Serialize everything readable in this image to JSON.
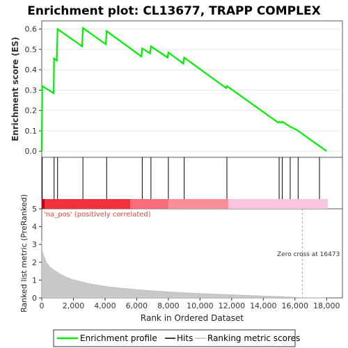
{
  "title": "Enrichment plot: CL13677, TRAPP COMPLEX",
  "top_ylabel": "Enrichment score (ES)",
  "bottom_ylabel": "Ranked list metric (PreRanked)",
  "xlabel": "Rank in Ordered Dataset",
  "pos_label": "'na_pos' (positively correlated)",
  "zero_cross_label": "Zero cross at 16473",
  "legend": {
    "profile": "Enrichment profile",
    "hits": "Hits",
    "metric": "Ranking metric scores"
  },
  "colors": {
    "profile": "#00ee00",
    "hits": "#000000",
    "metric": "#c0c0c0",
    "zero_line": "#aaaaaa"
  },
  "chart_data": {
    "type": "line",
    "x_range": [
      0,
      19000
    ],
    "x_ticks": [
      0,
      2000,
      4000,
      6000,
      8000,
      10000,
      12000,
      14000,
      16000,
      18000
    ],
    "x_tick_labels": [
      "0",
      "2,000",
      "4,000",
      "6,000",
      "8,000",
      "10,000",
      "12,000",
      "14,000",
      "16,000",
      "18,000"
    ],
    "es_ylim": [
      -0.03,
      0.64
    ],
    "es_ticks": [
      0.0,
      0.1,
      0.2,
      0.3,
      0.4,
      0.5,
      0.6
    ],
    "es_tick_labels": [
      "0.0",
      "0.1",
      "0.2",
      "0.3",
      "0.4",
      "0.5",
      "0.6"
    ],
    "es_profile": [
      [
        0,
        0.0
      ],
      [
        30,
        0.32
      ],
      [
        750,
        0.285
      ],
      [
        780,
        0.455
      ],
      [
        950,
        0.445
      ],
      [
        1000,
        0.6
      ],
      [
        2550,
        0.515
      ],
      [
        2600,
        0.605
      ],
      [
        4050,
        0.525
      ],
      [
        4100,
        0.59
      ],
      [
        6300,
        0.465
      ],
      [
        6350,
        0.505
      ],
      [
        6850,
        0.48
      ],
      [
        6900,
        0.515
      ],
      [
        7950,
        0.46
      ],
      [
        8000,
        0.485
      ],
      [
        8950,
        0.43
      ],
      [
        9000,
        0.46
      ],
      [
        11650,
        0.31
      ],
      [
        11700,
        0.32
      ],
      [
        14950,
        0.14
      ],
      [
        15000,
        0.145
      ],
      [
        15150,
        0.14
      ],
      [
        15200,
        0.145
      ],
      [
        15700,
        0.12
      ],
      [
        16100,
        0.105
      ],
      [
        16200,
        0.1
      ],
      [
        18000,
        0.0
      ]
    ],
    "hits": [
      30,
      780,
      1000,
      2600,
      4100,
      6350,
      6900,
      8000,
      9000,
      11700,
      15000,
      15200,
      15700,
      16200,
      17550
    ],
    "metric_ylim": [
      0,
      5
    ],
    "metric_ticks": [
      0,
      1,
      2,
      3,
      4,
      5
    ],
    "metric_curve": [
      [
        0,
        3.2
      ],
      [
        50,
        2.6
      ],
      [
        150,
        2.3
      ],
      [
        300,
        2.0
      ],
      [
        500,
        1.75
      ],
      [
        800,
        1.55
      ],
      [
        1200,
        1.32
      ],
      [
        1600,
        1.15
      ],
      [
        2000,
        1.02
      ],
      [
        3000,
        0.8
      ],
      [
        4000,
        0.65
      ],
      [
        5000,
        0.55
      ],
      [
        6000,
        0.47
      ],
      [
        7000,
        0.4
      ],
      [
        8000,
        0.34
      ],
      [
        9000,
        0.29
      ],
      [
        10000,
        0.25
      ],
      [
        11000,
        0.21
      ],
      [
        12000,
        0.18
      ],
      [
        13000,
        0.14
      ],
      [
        14000,
        0.11
      ],
      [
        15000,
        0.08
      ],
      [
        16000,
        0.04
      ],
      [
        16473,
        0.0
      ],
      [
        18000,
        0.0
      ]
    ],
    "zero_cross": 16473
  }
}
